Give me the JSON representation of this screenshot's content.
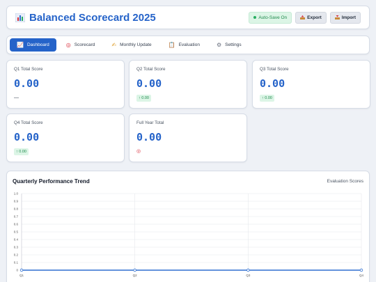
{
  "header": {
    "title": "Balanced Scorecard 2025",
    "autosave_label": "Auto-Save On",
    "export_label": "Export",
    "import_label": "Import"
  },
  "nav": {
    "tabs": [
      {
        "label": "Dashboard",
        "icon": "chart-icon",
        "active": true
      },
      {
        "label": "Scorecard",
        "icon": "target-icon"
      },
      {
        "label": "Monthly Update",
        "icon": "writing-hand-icon"
      },
      {
        "label": "Evaluation",
        "icon": "clipboard-icon"
      },
      {
        "label": "Settings",
        "icon": "gear-icon"
      }
    ]
  },
  "scores": {
    "q1": {
      "label": "Q1 Total Score",
      "value": "0.00",
      "indicator": "—"
    },
    "q2": {
      "label": "Q2 Total Score",
      "value": "0.00",
      "indicator": "↑ 0.00"
    },
    "q3": {
      "label": "Q3 Total Score",
      "value": "0.00",
      "indicator": "↑ 0.00"
    },
    "q4": {
      "label": "Q4 Total Score",
      "value": "0.00",
      "indicator": "↑ 0.00"
    },
    "full": {
      "label": "Full Year Total",
      "value": "0.00",
      "indicator": "target-icon"
    }
  },
  "chart": {
    "title": "Quarterly Performance Trend",
    "legend_label": "Evaluation Scores"
  },
  "chart_data": {
    "type": "line",
    "categories": [
      "Q1",
      "Q2",
      "Q3",
      "Q4"
    ],
    "series": [
      {
        "name": "Evaluation Scores",
        "values": [
          0,
          0,
          0,
          0
        ],
        "color": "#2f6fd0"
      }
    ],
    "ylim": [
      0,
      1
    ],
    "yticks": [
      "0",
      "0.1",
      "0.2",
      "0.3",
      "0.4",
      "0.5",
      "0.6",
      "0.7",
      "0.8",
      "0.9",
      "1.0"
    ],
    "grid": true
  },
  "colors": {
    "accent": "#2563c9",
    "success_bg": "#dcf5e6",
    "success_text": "#1f8a4c"
  }
}
